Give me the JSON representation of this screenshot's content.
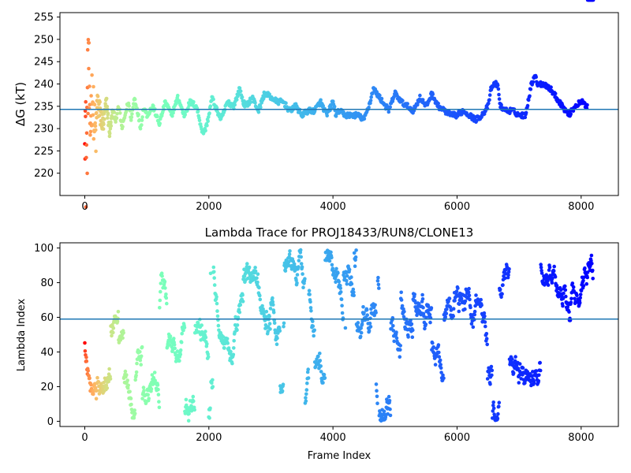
{
  "chart_data": [
    {
      "type": "scatter",
      "title": "",
      "xlabel": "",
      "ylabel": "ΔG (kT)",
      "xlim": [
        -400,
        8600
      ],
      "ylim": [
        215,
        256
      ],
      "xticks": [
        0,
        2000,
        4000,
        6000,
        8000
      ],
      "yticks": [
        220,
        225,
        230,
        235,
        240,
        245,
        250,
        255
      ],
      "grid": false,
      "colormap": "rainbow (red at early frames → purple at late frames)",
      "reference_line": {
        "value": 234.3,
        "color": "#1f77b4"
      },
      "series": [
        {
          "frame": [
            0,
            20,
            40,
            60,
            80,
            100,
            120,
            150,
            180,
            200,
            250,
            300,
            350,
            400,
            450,
            500,
            550,
            600,
            650,
            700,
            750,
            800,
            850,
            900,
            950,
            1000,
            1100,
            1200,
            1300,
            1400,
            1500,
            1600,
            1700,
            1800,
            1900,
            1950,
            2000,
            2050,
            2100,
            2200,
            2300,
            2400,
            2500,
            2550,
            2600,
            2700,
            2800,
            2900,
            3000,
            3100,
            3200,
            3300,
            3400,
            3500,
            3600,
            3700,
            3800,
            3900,
            4000,
            4050,
            4100,
            4200,
            4300,
            4400,
            4500,
            4600,
            4650,
            4700,
            4800,
            4900,
            5000,
            5050,
            5100,
            5200,
            5300,
            5400,
            5500,
            5600,
            5650,
            5700,
            5800,
            5900,
            6000,
            6100,
            6200,
            6300,
            6400,
            6500,
            6550,
            6600,
            6650,
            6700,
            6800,
            6900,
            7000,
            7100,
            7200,
            7250,
            7300,
            7400,
            7500,
            7600,
            7700,
            7800,
            7900,
            8000,
            8100,
            8200
          ],
          "dG": [
            240,
            222,
            230,
            250,
            227,
            234,
            238,
            232,
            228,
            236,
            233,
            231,
            236,
            229,
            234,
            232,
            235,
            230,
            233,
            236,
            232,
            237,
            234,
            230,
            235,
            233,
            235,
            231,
            236,
            233,
            237,
            233,
            236,
            235,
            229,
            230,
            233,
            237,
            235,
            232,
            236,
            235,
            239,
            236,
            235,
            237,
            234,
            238,
            237,
            236,
            236,
            234,
            235,
            233,
            234,
            234,
            236,
            233,
            236,
            233,
            234,
            233,
            233,
            233,
            232,
            236,
            239,
            238,
            236,
            234,
            238,
            237,
            236,
            235,
            234,
            237,
            235,
            238,
            236,
            235,
            234,
            233,
            233,
            234,
            233,
            232,
            233,
            235,
            239,
            240,
            240,
            235,
            234,
            234,
            233,
            233,
            240,
            242,
            240,
            240,
            239,
            237,
            235,
            233,
            235,
            236,
            235
          ]
        }
      ]
    },
    {
      "type": "scatter",
      "title": "Lambda Trace for PROJ18433/RUN8/CLONE13",
      "xlabel": "Frame Index",
      "ylabel": "Lambda Index",
      "xlim": [
        -400,
        8600
      ],
      "ylim": [
        -3,
        103
      ],
      "xticks": [
        0,
        2000,
        4000,
        6000,
        8000
      ],
      "yticks": [
        0,
        20,
        40,
        60,
        80,
        100
      ],
      "grid": false,
      "colormap": "rainbow (red at early frames → purple at late frames)",
      "reference_line": {
        "value": 59,
        "color": "#1f77b4"
      },
      "lambda_index_range": [
        0,
        99
      ],
      "frame_range": [
        0,
        8190
      ]
    }
  ]
}
